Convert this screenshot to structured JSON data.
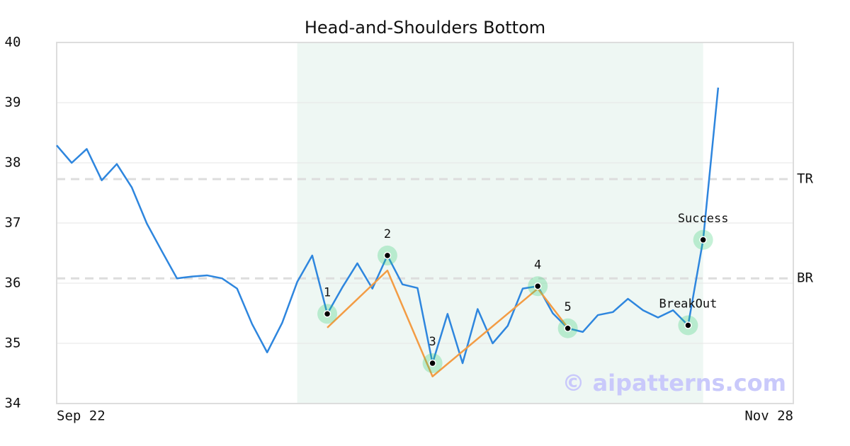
{
  "chart_data": {
    "type": "line",
    "title": "Head-and-Shoulders Bottom",
    "x": [
      0,
      1,
      2,
      3,
      4,
      5,
      6,
      7,
      8,
      9,
      10,
      11,
      12,
      13,
      14,
      15,
      16,
      17,
      18,
      19,
      20,
      21,
      22,
      23,
      24,
      25,
      26,
      27,
      28,
      29,
      30,
      31,
      32,
      33,
      34,
      35,
      36,
      37,
      38,
      39,
      40,
      41,
      42,
      43,
      44
    ],
    "xlim": [
      0,
      49
    ],
    "xticks": [
      {
        "value": 0,
        "label": "Sep 22"
      },
      {
        "value": 49,
        "label": "Nov 28"
      }
    ],
    "ylim": [
      34,
      40
    ],
    "yticks": [
      34,
      35,
      36,
      37,
      38,
      39,
      40
    ],
    "grid": true,
    "series": [
      {
        "color": "#2e86de",
        "values": [
          38.29,
          38.0,
          38.23,
          37.71,
          37.98,
          37.59,
          36.99,
          36.53,
          36.08,
          36.11,
          36.13,
          36.08,
          35.91,
          35.32,
          34.85,
          35.34,
          36.02,
          36.46,
          35.49,
          35.93,
          36.33,
          35.91,
          36.46,
          35.98,
          35.92,
          34.67,
          35.49,
          34.67,
          35.57,
          35.0,
          35.29,
          35.91,
          35.95,
          35.5,
          35.25,
          35.19,
          35.47,
          35.52,
          35.74,
          35.55,
          35.43,
          35.55,
          35.3,
          36.72,
          39.25
        ]
      },
      {
        "color": "#f39c44",
        "x": [
          18,
          22,
          25,
          32,
          34
        ],
        "values": [
          35.26,
          36.21,
          34.45,
          35.91,
          35.26
        ]
      }
    ],
    "highlight": [
      16,
      43
    ],
    "levels": [
      {
        "label": "TR",
        "value": 37.73
      },
      {
        "label": "BR",
        "value": 36.08
      }
    ],
    "annotations": [
      {
        "label": "1",
        "x": 18,
        "y": 35.49
      },
      {
        "label": "2",
        "x": 22,
        "y": 36.46
      },
      {
        "label": "3",
        "x": 25,
        "y": 34.67
      },
      {
        "label": "4",
        "x": 32,
        "y": 35.95
      },
      {
        "label": "5",
        "x": 34,
        "y": 35.25
      },
      {
        "label": "BreakOut",
        "x": 42,
        "y": 35.3
      },
      {
        "label": "Success",
        "x": 43,
        "y": 36.72
      }
    ],
    "watermark": "© aipatterns.com"
  }
}
